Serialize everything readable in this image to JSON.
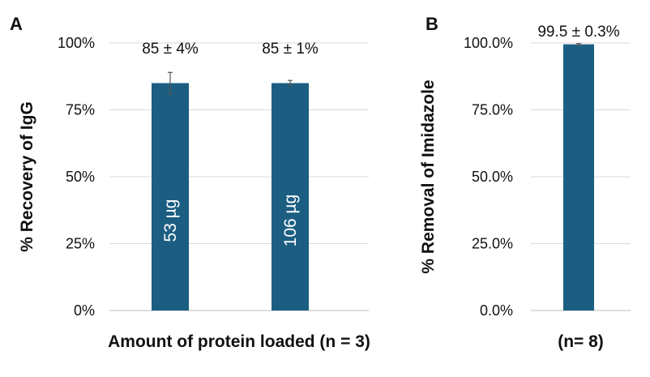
{
  "chart_data": [
    {
      "type": "bar",
      "panel": "A",
      "categories": [
        "53 µg",
        "106 µg"
      ],
      "values": [
        85,
        85
      ],
      "errors": [
        4,
        1
      ],
      "value_labels": [
        "85 ± 4%",
        "85 ± 1%"
      ],
      "bar_labels": [
        "53 µg",
        "106 µg"
      ],
      "xlabel": "Amount of protein loaded (n = 3)",
      "ylabel": "% Recovery of IgG",
      "ylim": [
        0,
        100
      ],
      "yticks": [
        0,
        25,
        50,
        75,
        100
      ],
      "ytick_labels": [
        "0%",
        "25%",
        "50%",
        "75%",
        "100%"
      ],
      "grid": true,
      "color": "#1b5e82"
    },
    {
      "type": "bar",
      "panel": "B",
      "categories": [
        ""
      ],
      "values": [
        99.5
      ],
      "errors": [
        0.3
      ],
      "value_labels": [
        "99.5 ± 0.3%"
      ],
      "bar_labels": [
        ""
      ],
      "xlabel": "(n= 8)",
      "ylabel": "% Removal of Imidazole",
      "ylim": [
        0,
        100
      ],
      "yticks": [
        0,
        25,
        50,
        75,
        100
      ],
      "ytick_labels": [
        "0.0%",
        "25.0%",
        "50.0%",
        "75.0%",
        "100.0%"
      ],
      "grid": true,
      "color": "#1b5e82"
    }
  ]
}
